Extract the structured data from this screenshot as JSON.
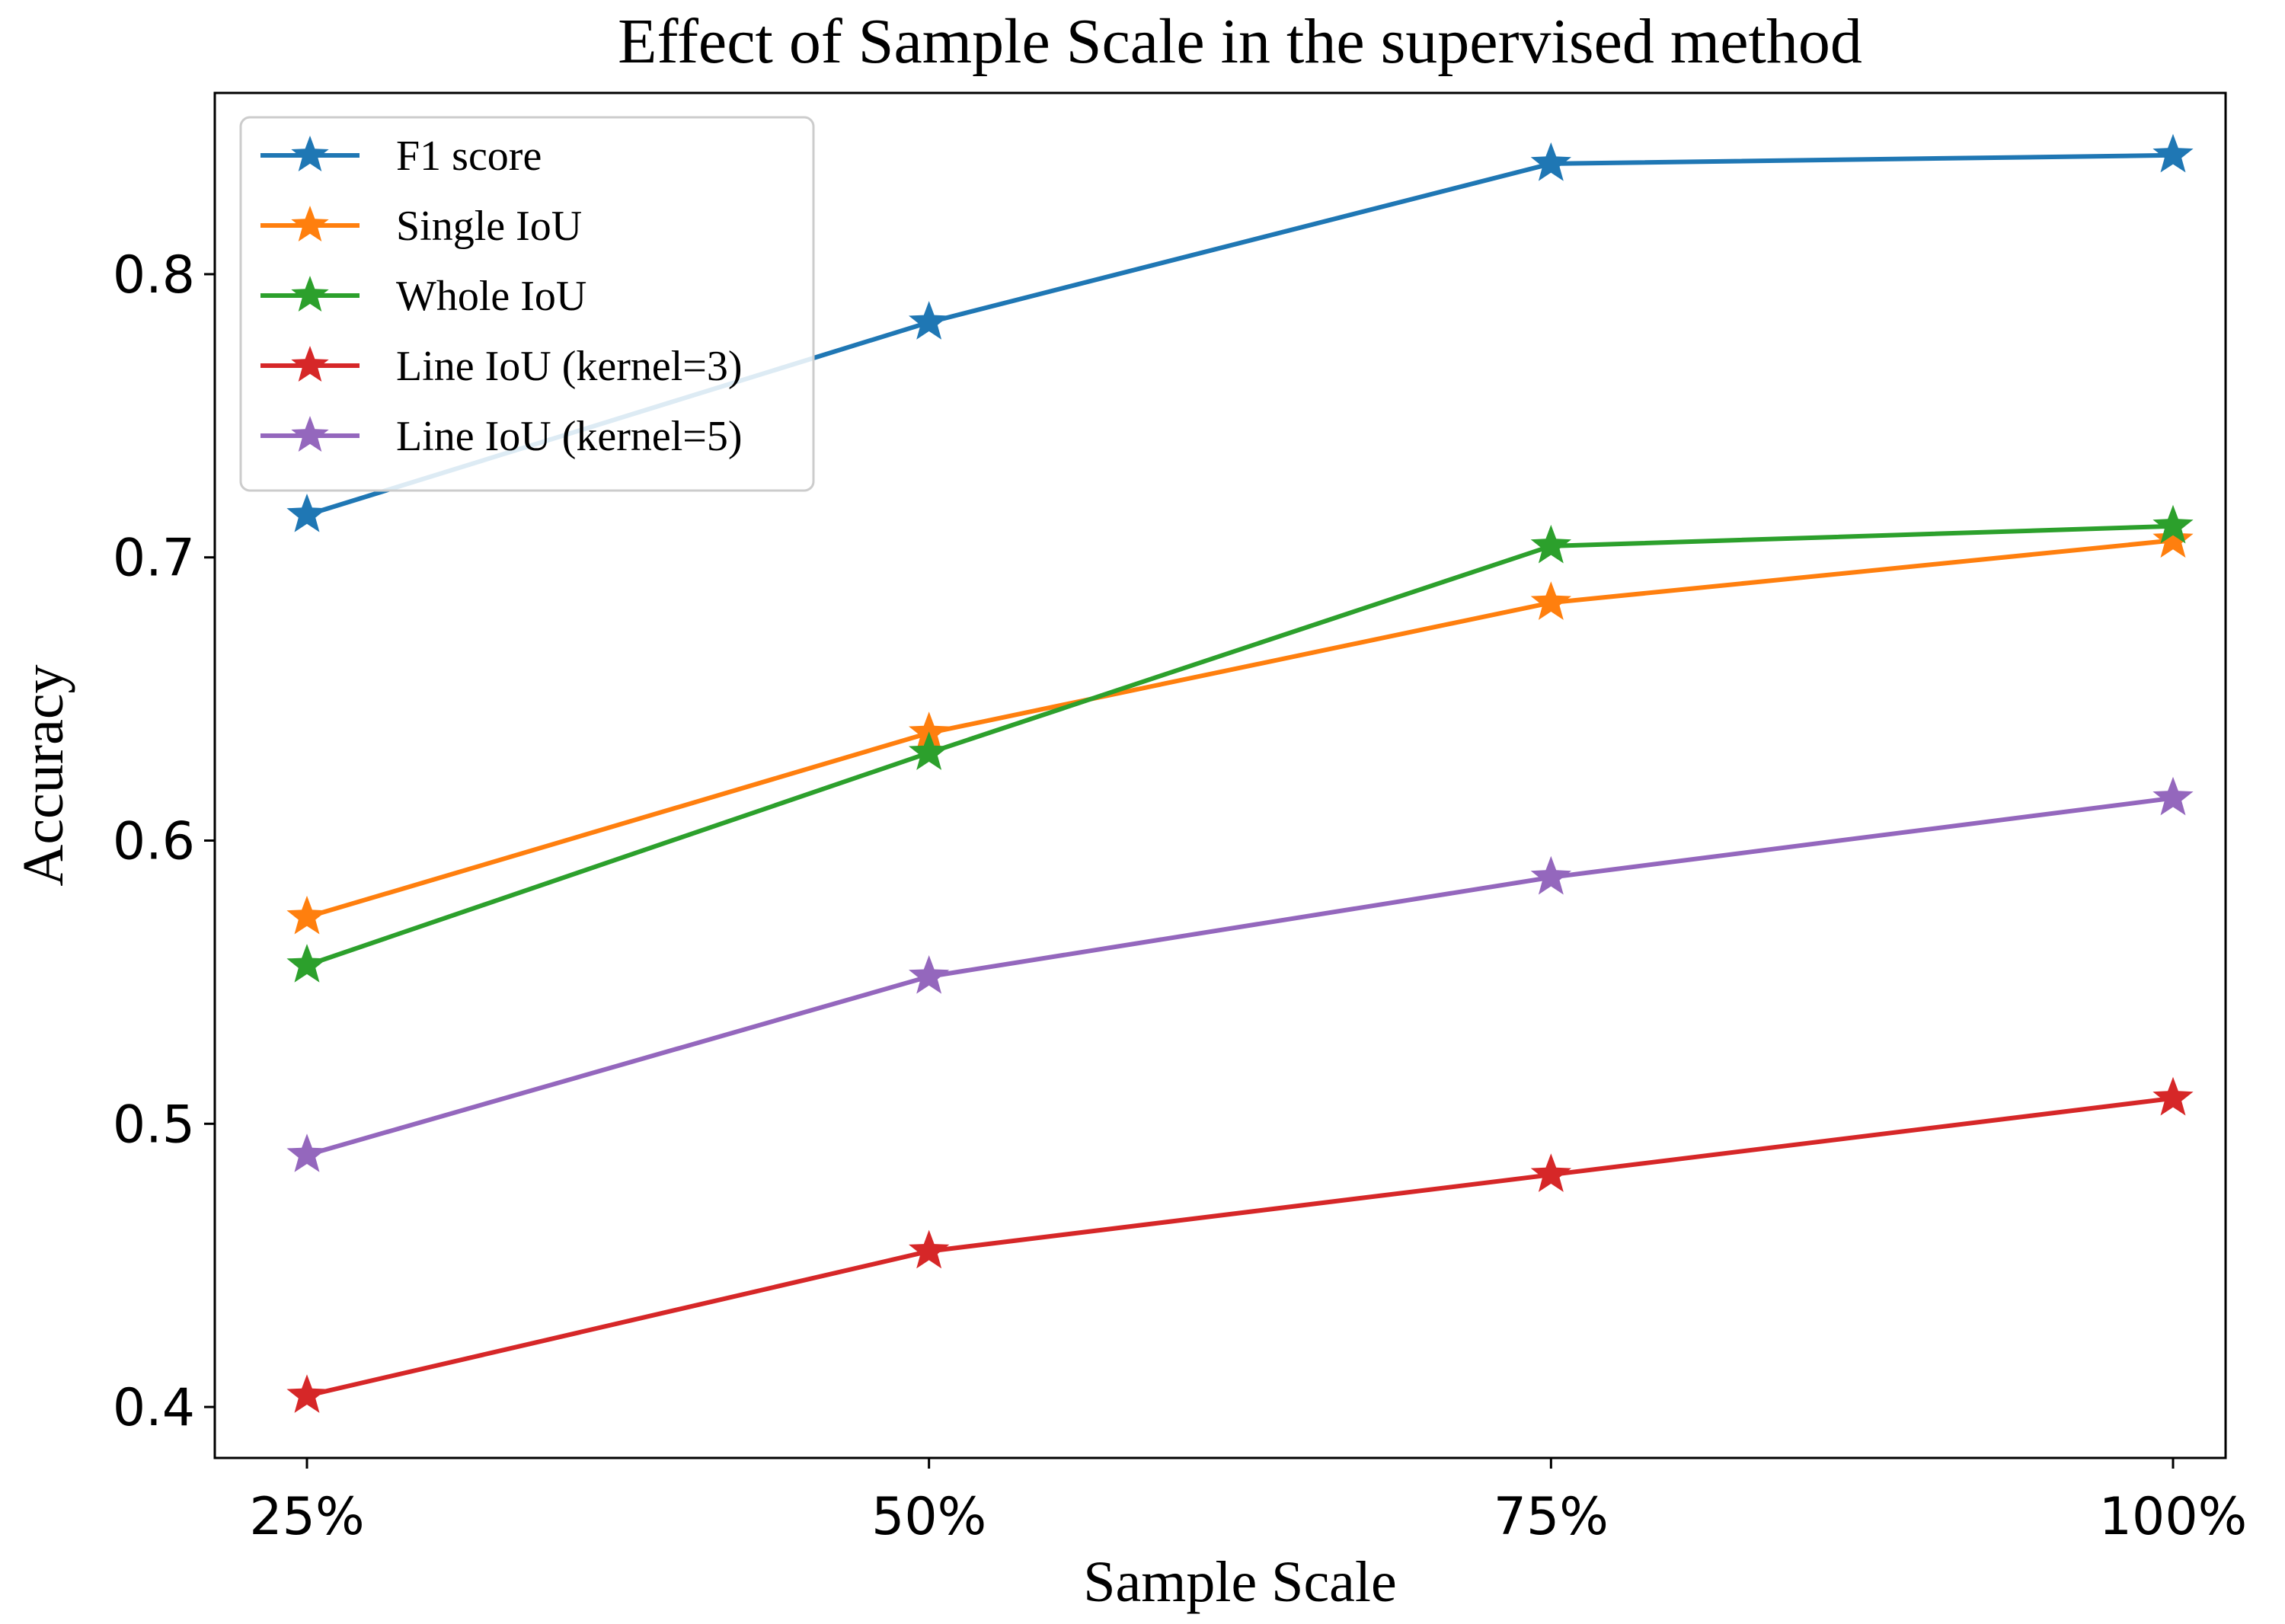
{
  "chart_data": {
    "type": "line",
    "title": "Effect of Sample Scale in the supervised method",
    "xlabel": "Sample Scale",
    "ylabel": "Accuracy",
    "categories": [
      "25%",
      "50%",
      "75%",
      "100%"
    ],
    "ylim": [
      0.382,
      0.864
    ],
    "yticks": [
      0.4,
      0.5,
      0.6,
      0.7,
      0.8
    ],
    "ytick_labels": [
      "0.4",
      "0.5",
      "0.6",
      "0.7",
      "0.8"
    ],
    "grid": false,
    "legend_position": "top-left",
    "marker": "star",
    "series": [
      {
        "name": "F1 score",
        "color": "#1f77b4",
        "values": [
          0.715,
          0.783,
          0.839,
          0.842
        ]
      },
      {
        "name": "Single IoU",
        "color": "#ff7f0e",
        "values": [
          0.573,
          0.638,
          0.684,
          0.706
        ]
      },
      {
        "name": "Whole IoU",
        "color": "#2ca02c",
        "values": [
          0.556,
          0.631,
          0.704,
          0.711
        ]
      },
      {
        "name": "Line IoU (kernel=3)",
        "color": "#d62728",
        "values": [
          0.404,
          0.455,
          0.482,
          0.509
        ]
      },
      {
        "name": "Line IoU (kernel=5)",
        "color": "#9467bd",
        "values": [
          0.489,
          0.552,
          0.587,
          0.615
        ]
      }
    ]
  }
}
